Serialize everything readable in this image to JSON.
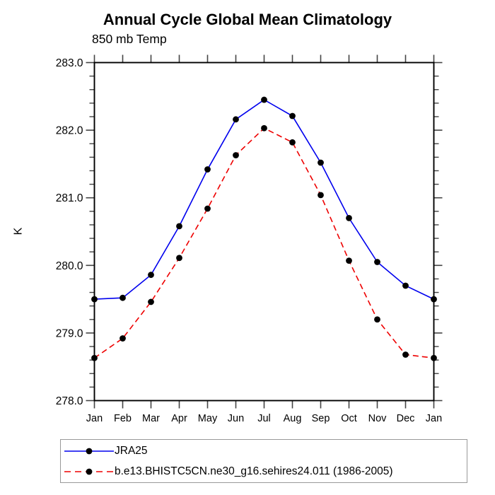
{
  "title": "Annual Cycle Global Mean Climatology",
  "subtitle": "850 mb Temp",
  "y_axis": {
    "label": "K",
    "min": 278.0,
    "max": 283.0,
    "major_step": 1.0,
    "minor_step": 0.2,
    "tick_labels": [
      "278.0",
      "279.0",
      "280.0",
      "281.0",
      "282.0",
      "283.0"
    ]
  },
  "x_axis": {
    "tick_labels": [
      "Jan",
      "Feb",
      "Mar",
      "Apr",
      "May",
      "Jun",
      "Jul",
      "Aug",
      "Sep",
      "Oct",
      "Nov",
      "Dec",
      "Jan"
    ]
  },
  "colors": {
    "series1": "#0000ee",
    "series2": "#ee0000",
    "marker": "#000000",
    "axis": "#000000",
    "tick": "#444444",
    "legend_border": "#999999"
  },
  "chart_data": {
    "type": "line",
    "title": "Annual Cycle Global Mean Climatology",
    "subtitle": "850 mb Temp",
    "ylabel": "K",
    "ylim": [
      278.0,
      283.0
    ],
    "grid": false,
    "legend_position": "bottom-left-box",
    "categories": [
      "Jan",
      "Feb",
      "Mar",
      "Apr",
      "May",
      "Jun",
      "Jul",
      "Aug",
      "Sep",
      "Oct",
      "Nov",
      "Dec",
      "Jan"
    ],
    "series": [
      {
        "name": "JRA25",
        "color": "#0000ee",
        "line_style": "solid",
        "marker": "filled-circle",
        "values": [
          279.5,
          279.52,
          279.86,
          280.58,
          281.42,
          282.16,
          282.45,
          282.21,
          281.52,
          280.7,
          280.05,
          279.7,
          279.5
        ]
      },
      {
        "name": "b.e13.BHISTC5CN.ne30_g16.sehires24.011 (1986-2005)",
        "color": "#ee0000",
        "line_style": "dashed",
        "marker": "filled-circle",
        "values": [
          278.63,
          278.92,
          279.46,
          280.11,
          280.84,
          281.63,
          282.03,
          281.82,
          281.04,
          280.07,
          279.2,
          278.68,
          278.63
        ]
      }
    ]
  }
}
